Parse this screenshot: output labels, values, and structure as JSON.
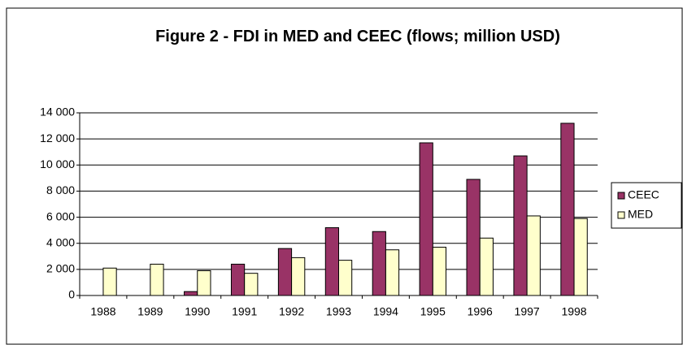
{
  "chart_data": {
    "type": "bar",
    "title": "Figure 2 - FDI in MED and CEEC (flows; million USD)",
    "categories": [
      "1988",
      "1989",
      "1990",
      "1991",
      "1992",
      "1993",
      "1994",
      "1995",
      "1996",
      "1997",
      "1998"
    ],
    "series": [
      {
        "name": "CEEC",
        "color": "#993366",
        "values": [
          0,
          0,
          300,
          2400,
          3600,
          5200,
          4900,
          11700,
          8900,
          10700,
          13200
        ]
      },
      {
        "name": "MED",
        "color": "#ffffcc",
        "values": [
          2100,
          2400,
          1900,
          1700,
          2900,
          2700,
          3500,
          3700,
          4400,
          6100,
          5900
        ]
      }
    ],
    "ylim": [
      0,
      14000
    ],
    "yticks": [
      0,
      {
        "value": 2000,
        "label": "2 000"
      },
      {
        "value": 4000,
        "label": "4 000"
      },
      {
        "value": 6000,
        "label": "6 000"
      },
      {
        "value": 8000,
        "label": "8 000"
      },
      {
        "value": 10000,
        "label": "10 000"
      },
      {
        "value": 12000,
        "label": "12 000"
      },
      {
        "value": 14000,
        "label": "14 000"
      }
    ],
    "grid": true,
    "legend": "right"
  }
}
